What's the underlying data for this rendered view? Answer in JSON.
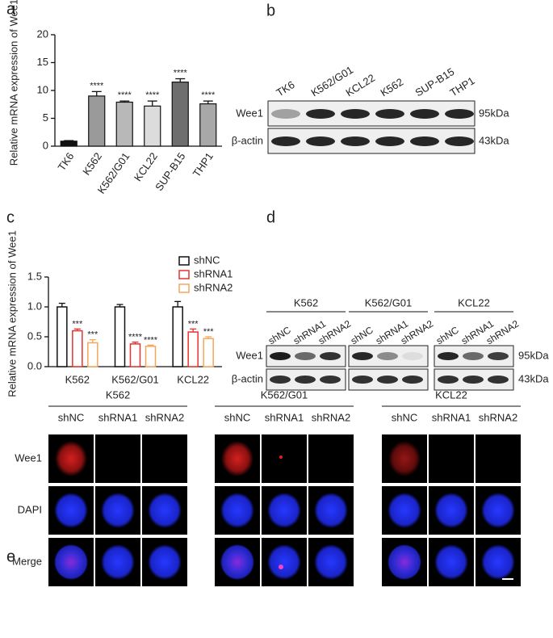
{
  "panel_labels": [
    "a",
    "b",
    "c",
    "d",
    "e"
  ],
  "chart_data": [
    {
      "type": "bar",
      "y_label": "Relative mRNA expression of Wee1",
      "categories": [
        "TK6",
        "K562",
        "K562/G01",
        "KCL22",
        "SUP-B15",
        "THP1"
      ],
      "values": [
        0.9,
        9.0,
        7.9,
        7.2,
        11.5,
        7.6
      ],
      "errors": [
        0.1,
        0.8,
        0.2,
        0.9,
        0.6,
        0.5
      ],
      "colors": [
        "#111111",
        "#9a9a9a",
        "#b8b8b8",
        "#dcdcdc",
        "#6e6e6e",
        "#a8a8a8"
      ],
      "annotations": [
        null,
        "****",
        "****",
        "****",
        "****",
        "****"
      ],
      "ylim": [
        0,
        20
      ],
      "yticks": [
        0,
        5,
        10,
        15,
        20
      ]
    },
    {
      "type": "grouped_bar",
      "y_label": "Relative mRNA expression of Wee1",
      "categories": [
        "K562",
        "K562/G01",
        "KCL22"
      ],
      "series": [
        {
          "name": "shNC",
          "color": "#111111",
          "values": [
            1.0,
            1.0,
            1.0
          ],
          "errors": [
            0.06,
            0.04,
            0.09
          ],
          "annotations": [
            null,
            null,
            null
          ]
        },
        {
          "name": "shRNA1",
          "color": "#e8322e",
          "values": [
            0.6,
            0.38,
            0.58
          ],
          "errors": [
            0.03,
            0.03,
            0.05
          ],
          "annotations": [
            "***",
            "****",
            "***"
          ]
        },
        {
          "name": "shRNA2",
          "color": "#f5a65b",
          "values": [
            0.4,
            0.34,
            0.47
          ],
          "errors": [
            0.05,
            0.02,
            0.03
          ],
          "annotations": [
            "***",
            "****",
            "***"
          ]
        }
      ],
      "ylim": [
        0,
        1.5
      ],
      "yticks": [
        {
          "value": 0,
          "label": "0.0"
        },
        0.5,
        {
          "value": 1,
          "label": "1.0"
        },
        {
          "value": 1.5,
          "label": "1.5"
        }
      ],
      "legend": "upper right"
    }
  ],
  "blot_b": {
    "lanes": [
      "TK6",
      "K562/G01",
      "KCL22",
      "K562",
      "SUP-B15",
      "THP1"
    ],
    "rows": [
      "Wee1",
      "β-actin"
    ],
    "sizes": [
      "95kDa",
      "43kDa"
    ]
  },
  "blot_d": {
    "groups": [
      {
        "name": "K562",
        "lanes": [
          "shNC",
          "shRNA1",
          "shRNA2"
        ]
      },
      {
        "name": "K562/G01",
        "lanes": [
          "shNC",
          "shRNA1",
          "shRNA2"
        ]
      },
      {
        "name": "KCL22",
        "lanes": [
          "shNC",
          "shRNA1",
          "shRNA2"
        ]
      }
    ],
    "rows": [
      "Wee1",
      "β-actin"
    ],
    "sizes": [
      "95kDa",
      "43kDa"
    ]
  },
  "imaging_e": {
    "groups": [
      {
        "name": "K562",
        "lanes": [
          "shNC",
          "shRNA1",
          "shRNA2"
        ]
      },
      {
        "name": "K562/G01",
        "lanes": [
          "shNC",
          "shRNA1",
          "shRNA2"
        ]
      },
      {
        "name": "KCL22",
        "lanes": [
          "shNC",
          "shRNA1",
          "shRNA2"
        ]
      }
    ],
    "rows": [
      "Wee1",
      "DAPI",
      "Merge"
    ]
  }
}
